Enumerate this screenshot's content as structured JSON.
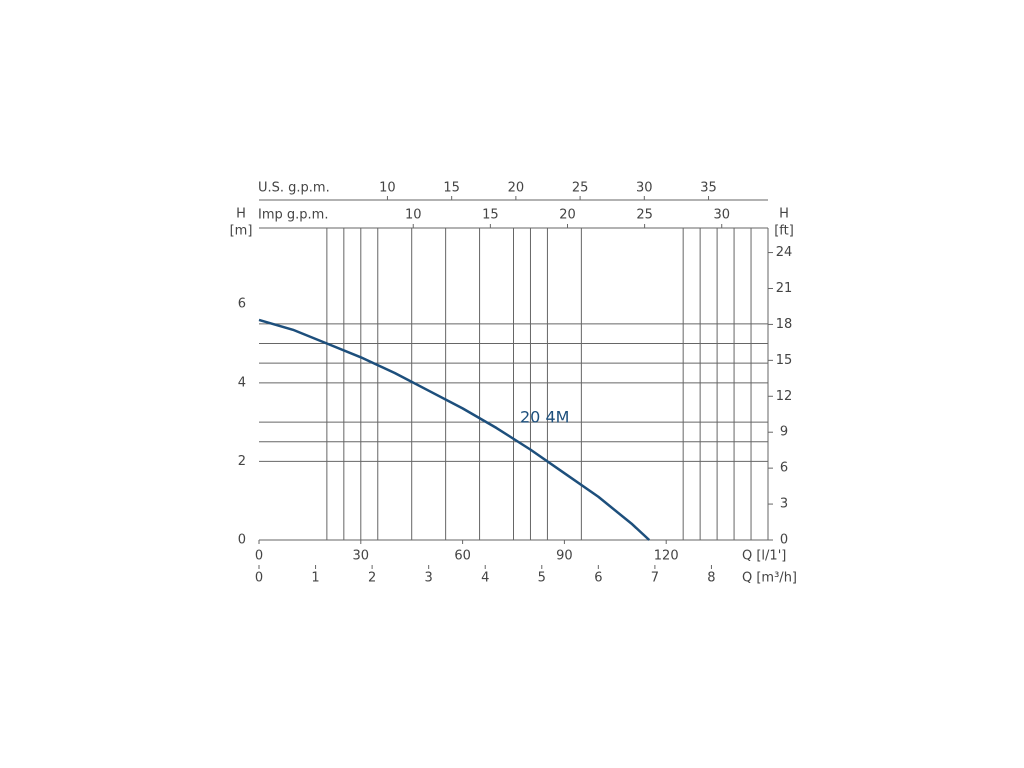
{
  "chart_data": {
    "type": "line",
    "x_label": "Q [l/1']",
    "x2_label": "Q [m³/h]",
    "top_label": "U.S. g.p.m.",
    "top2_label": "Imp g.p.m.",
    "y_label": "H",
    "y_unit": "[m]",
    "y2_label": "H",
    "y2_unit": "[ft]",
    "xlim": [
      0,
      150
    ],
    "xticks": [
      0,
      30,
      60,
      90,
      120
    ],
    "x2lim": [
      0,
      9
    ],
    "x2ticks": [
      0,
      1,
      2,
      3,
      4,
      5,
      6,
      7,
      8
    ],
    "x3lim": [
      0,
      39.63
    ],
    "x3ticks": [
      10,
      15,
      20,
      25,
      30,
      35
    ],
    "x4lim": [
      0,
      33
    ],
    "x4ticks": [
      10,
      15,
      20,
      25,
      30
    ],
    "ylim": [
      0,
      7.94
    ],
    "yticks": [
      0,
      2,
      4,
      6
    ],
    "y2lim": [
      0,
      26.05
    ],
    "y2ticks": [
      0,
      3,
      6,
      9,
      12,
      15,
      18,
      21,
      24
    ],
    "xgrid": [
      20,
      25,
      30,
      35,
      45,
      55,
      65,
      75,
      80,
      85,
      95,
      125,
      130,
      135,
      140,
      145
    ],
    "ygrid": [
      2,
      2.5,
      3,
      4,
      4.5,
      5,
      5.5
    ],
    "series": [
      {
        "name": "20 4M",
        "color": "#1d4f7c",
        "x": [
          0,
          10,
          20,
          30,
          40,
          50,
          60,
          70,
          80,
          90,
          100,
          110,
          115
        ],
        "values": [
          5.6,
          5.35,
          5.0,
          4.65,
          4.25,
          3.8,
          3.35,
          2.85,
          2.3,
          1.7,
          1.1,
          0.4,
          0
        ]
      }
    ]
  }
}
